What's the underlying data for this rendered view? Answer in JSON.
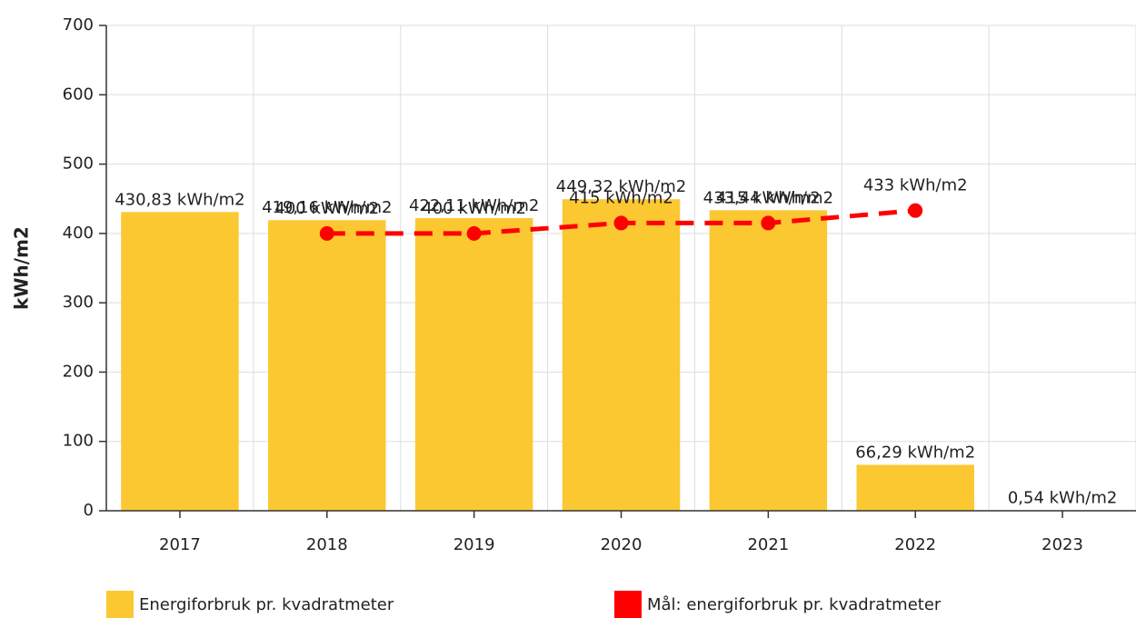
{
  "chart_data": {
    "type": "bar",
    "categories": [
      "2017",
      "2018",
      "2019",
      "2020",
      "2021",
      "2022",
      "2023"
    ],
    "series": [
      {
        "name": "Energiforbruk pr. kvadratmeter",
        "type": "bar",
        "color": "#fcc831",
        "values": [
          430.83,
          419.16,
          422.11,
          449.32,
          433.44,
          66.29,
          0.54
        ],
        "value_labels": [
          "430,83 kWh/m2",
          "419,16 kWh/m2",
          "422,11 kWh/m2",
          "449,32 kWh/m2",
          "433,44 kWh/m2",
          "66,29 kWh/m2",
          "0,54 kWh/m2"
        ]
      },
      {
        "name": "Mål: energiforbruk pr. kvadratmeter",
        "type": "line",
        "color": "#ff0000",
        "values": [
          null,
          400,
          400,
          415,
          415,
          433,
          null
        ],
        "value_labels": [
          null,
          "400 kWh/m2",
          "400 kWh/m2",
          "415 kWh/m2",
          "415 kWh/m2",
          "433 kWh/m2",
          null
        ]
      }
    ],
    "ylabel": "kWh/m2",
    "ylim": [
      0,
      700
    ],
    "yticks": [
      0,
      100,
      200,
      300,
      400,
      500,
      600,
      700
    ],
    "grid": true,
    "legend": "bottom"
  }
}
